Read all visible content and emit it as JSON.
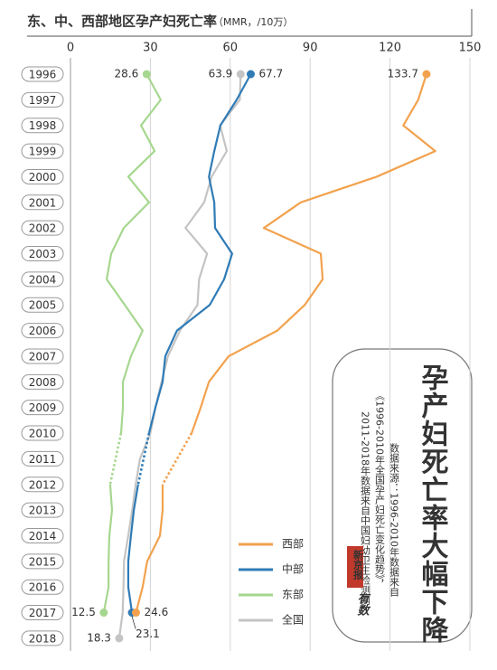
{
  "chart_data": {
    "type": "line",
    "orientation": "horizontal",
    "title": "东、中、西部地区孕产妇死亡率",
    "unit": "（MMR，/10万）",
    "categories": [
      "1996",
      "1997",
      "1998",
      "1999",
      "2000",
      "2001",
      "2002",
      "2003",
      "2004",
      "2005",
      "2006",
      "2007",
      "2008",
      "2009",
      "2010",
      "2011",
      "2012",
      "2013",
      "2014",
      "2015",
      "2016",
      "2017",
      "2018"
    ],
    "series": [
      {
        "name": "西部",
        "color": "#f2a24e",
        "values": [
          133.7,
          130.6,
          125,
          137,
          115,
          86.5,
          72.6,
          94,
          94.7,
          88,
          77.7,
          59.4,
          52,
          48.9,
          45.5,
          null,
          34.6,
          34.6,
          33.6,
          28.8,
          27.1,
          24.6,
          null
        ]
      },
      {
        "name": "中部",
        "color": "#2f7bb6",
        "values": [
          67.7,
          62.4,
          56.3,
          54,
          52,
          54,
          54.3,
          60.7,
          57.7,
          52.3,
          40,
          35.6,
          34.6,
          31.9,
          29.5,
          null,
          25.4,
          23.8,
          22.7,
          21.7,
          21.7,
          23.1,
          null
        ]
      },
      {
        "name": "东部",
        "color": "#a6d78f",
        "values": [
          28.6,
          33.9,
          26.5,
          31.6,
          21.7,
          29.5,
          20,
          15.3,
          13.6,
          20.4,
          27.1,
          22.7,
          19.7,
          19.7,
          19,
          null,
          14.9,
          15.6,
          14.6,
          14.3,
          14.3,
          12.5,
          null
        ]
      },
      {
        "name": "全国",
        "color": "#c4c4c4",
        "values": [
          63.9,
          63.6,
          56.2,
          58.7,
          53,
          50.2,
          43.2,
          51.3,
          48.3,
          47.7,
          41.1,
          36.6,
          34.2,
          31.9,
          30,
          26.1,
          24.5,
          23.2,
          21.7,
          20.1,
          19.9,
          19.6,
          18.3
        ]
      }
    ],
    "xlim": [
      0,
      150
    ],
    "xticks": [
      0,
      30,
      60,
      90,
      120,
      150
    ],
    "grid": true,
    "headline": "孕产妇死亡率大幅下降",
    "source": [
      "数据来源：1996-2010年数据来自",
      "《1996-2010年全国孕产妇死亡变化趋势》，",
      "2011-2018年数据来自中国妇幼卫生检测网"
    ],
    "brand": [
      "新京报",
      "有数"
    ]
  }
}
